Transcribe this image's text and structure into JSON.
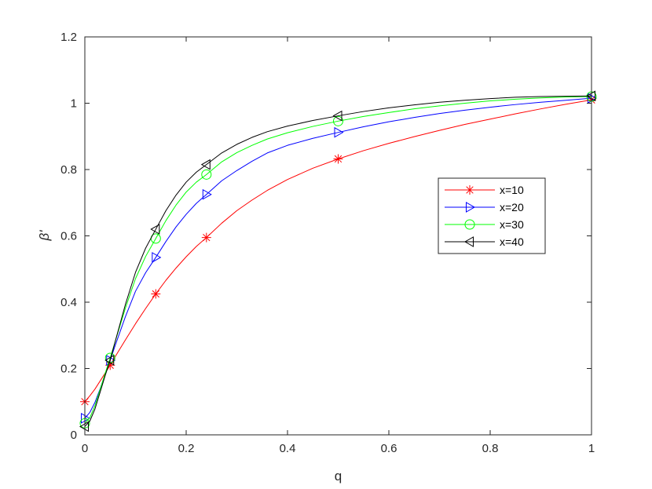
{
  "chart_data": {
    "type": "line",
    "title": "",
    "xlabel": "q",
    "ylabel": "β'",
    "xlim": [
      0,
      1
    ],
    "ylim": [
      0,
      1.2
    ],
    "xticks": [
      0,
      0.2,
      0.4,
      0.6,
      0.8,
      1
    ],
    "xtick_labels": [
      "0",
      "0.2",
      "0.4",
      "0.6",
      "0.8",
      "1"
    ],
    "yticks": [
      0,
      0.2,
      0.4,
      0.6,
      0.8,
      1,
      1.2
    ],
    "ytick_labels": [
      "0",
      "0.2",
      "0.4",
      "0.6",
      "0.8",
      "1",
      "1.2"
    ],
    "grid": false,
    "legend_position": "right-middle",
    "series": [
      {
        "name": "x=10",
        "color": "#ff0000",
        "marker": "asterisk",
        "markers": {
          "x": [
            0,
            0.05,
            0.14,
            0.24,
            0.5,
            1
          ],
          "y": [
            0.1,
            0.21,
            0.425,
            0.595,
            0.832,
            1.01
          ]
        },
        "curve": {
          "x": [
            0,
            0.01,
            0.02,
            0.03,
            0.04,
            0.05,
            0.06,
            0.08,
            0.1,
            0.12,
            0.14,
            0.16,
            0.18,
            0.2,
            0.22,
            0.24,
            0.27,
            0.3,
            0.33,
            0.36,
            0.4,
            0.45,
            0.5,
            0.55,
            0.6,
            0.65,
            0.7,
            0.75,
            0.8,
            0.85,
            0.9,
            0.95,
            1
          ],
          "y": [
            0.1,
            0.118,
            0.138,
            0.162,
            0.186,
            0.21,
            0.236,
            0.286,
            0.335,
            0.381,
            0.425,
            0.466,
            0.503,
            0.537,
            0.568,
            0.595,
            0.638,
            0.676,
            0.708,
            0.737,
            0.77,
            0.804,
            0.832,
            0.857,
            0.879,
            0.899,
            0.918,
            0.936,
            0.952,
            0.968,
            0.983,
            0.997,
            1.01
          ]
        }
      },
      {
        "name": "x=20",
        "color": "#0000ff",
        "marker": "triangle-right",
        "markers": {
          "x": [
            0,
            0.05,
            0.14,
            0.24,
            0.5,
            1
          ],
          "y": [
            0.05,
            0.225,
            0.535,
            0.725,
            0.912,
            1.015
          ]
        },
        "curve": {
          "x": [
            0,
            0.01,
            0.02,
            0.03,
            0.04,
            0.05,
            0.06,
            0.08,
            0.1,
            0.12,
            0.14,
            0.16,
            0.18,
            0.2,
            0.22,
            0.24,
            0.27,
            0.3,
            0.33,
            0.36,
            0.4,
            0.45,
            0.5,
            0.55,
            0.6,
            0.65,
            0.7,
            0.75,
            0.8,
            0.85,
            0.9,
            0.95,
            1
          ],
          "y": [
            0.05,
            0.068,
            0.098,
            0.138,
            0.182,
            0.225,
            0.27,
            0.356,
            0.433,
            0.489,
            0.535,
            0.583,
            0.627,
            0.665,
            0.698,
            0.725,
            0.766,
            0.797,
            0.825,
            0.85,
            0.873,
            0.894,
            0.912,
            0.929,
            0.944,
            0.957,
            0.969,
            0.979,
            0.988,
            0.996,
            1.003,
            1.009,
            1.015
          ]
        }
      },
      {
        "name": "x=30",
        "color": "#00ff00",
        "marker": "circle",
        "markers": {
          "x": [
            0,
            0.05,
            0.14,
            0.24,
            0.5,
            1
          ],
          "y": [
            0.035,
            0.232,
            0.592,
            0.785,
            0.946,
            1.02
          ]
        },
        "curve": {
          "x": [
            0,
            0.01,
            0.02,
            0.03,
            0.04,
            0.05,
            0.06,
            0.08,
            0.1,
            0.12,
            0.14,
            0.16,
            0.18,
            0.2,
            0.22,
            0.24,
            0.27,
            0.3,
            0.33,
            0.36,
            0.4,
            0.45,
            0.5,
            0.55,
            0.6,
            0.65,
            0.7,
            0.75,
            0.8,
            0.85,
            0.9,
            0.95,
            1
          ],
          "y": [
            0.035,
            0.052,
            0.088,
            0.136,
            0.185,
            0.232,
            0.282,
            0.382,
            0.471,
            0.538,
            0.592,
            0.646,
            0.693,
            0.732,
            0.762,
            0.785,
            0.823,
            0.851,
            0.873,
            0.892,
            0.911,
            0.93,
            0.946,
            0.96,
            0.972,
            0.983,
            0.992,
            1.0,
            1.007,
            1.012,
            1.016,
            1.019,
            1.02
          ]
        }
      },
      {
        "name": "x=40",
        "color": "#000000",
        "marker": "triangle-left",
        "markers": {
          "x": [
            0,
            0.05,
            0.14,
            0.24,
            0.5,
            1
          ],
          "y": [
            0.025,
            0.225,
            0.62,
            0.815,
            0.962,
            1.022
          ]
        },
        "curve": {
          "x": [
            0,
            0.01,
            0.02,
            0.03,
            0.04,
            0.05,
            0.06,
            0.08,
            0.1,
            0.12,
            0.14,
            0.16,
            0.18,
            0.2,
            0.22,
            0.24,
            0.27,
            0.3,
            0.33,
            0.36,
            0.4,
            0.45,
            0.5,
            0.55,
            0.6,
            0.65,
            0.7,
            0.75,
            0.8,
            0.85,
            0.9,
            0.95,
            1
          ],
          "y": [
            0.025,
            0.042,
            0.078,
            0.128,
            0.178,
            0.225,
            0.282,
            0.393,
            0.49,
            0.563,
            0.62,
            0.676,
            0.723,
            0.762,
            0.792,
            0.815,
            0.85,
            0.876,
            0.897,
            0.914,
            0.931,
            0.948,
            0.962,
            0.975,
            0.986,
            0.995,
            1.003,
            1.009,
            1.014,
            1.018,
            1.02,
            1.021,
            1.022
          ]
        }
      }
    ]
  }
}
